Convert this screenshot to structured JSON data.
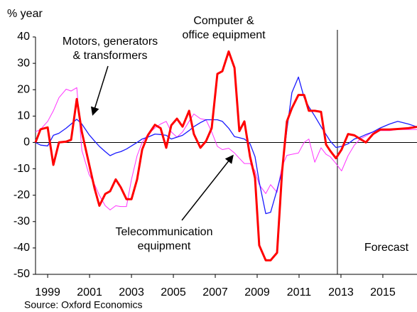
{
  "chart_data": {
    "type": "line",
    "y_axis_label": "% year",
    "source": "Source: Oxford Economics",
    "annotations": [
      {
        "lines": [
          "Computer &",
          "office equipment"
        ]
      },
      {
        "lines": [
          "Motors, generators",
          "& transformers"
        ]
      },
      {
        "lines": [
          "Telecommunication",
          "equipment"
        ]
      },
      {
        "lines": [
          "Forecast"
        ]
      }
    ],
    "forecast_x": 2012.83,
    "x": [
      1998.42,
      1998.66,
      1999,
      1999.27,
      1999.54,
      1999.88,
      2000.12,
      2000.39,
      2000.63,
      2000.97,
      2001.24,
      2001.47,
      2001.75,
      2001.98,
      2002.25,
      2002.49,
      2002.76,
      2003.0,
      2003.27,
      2003.51,
      2003.78,
      2004.12,
      2004.39,
      2004.66,
      2004.9,
      2005.17,
      2005.44,
      2005.75,
      2005.98,
      2006.29,
      2006.56,
      2006.83,
      2007.1,
      2007.34,
      2007.64,
      2007.92,
      2008.15,
      2008.39,
      2008.66,
      2008.9,
      2009.1,
      2009.41,
      2009.64,
      2009.95,
      2010.19,
      2010.42,
      2010.66,
      2010.97,
      2011.24,
      2011.47,
      2011.75,
      2012.05,
      2012.29,
      2012.49,
      2012.76,
      2013.03,
      2013.34,
      2013.64,
      2013.92,
      2014.19,
      2014.53,
      2014.88,
      2015.32,
      2015.71,
      2016.22,
      2016.63
    ],
    "series": [
      {
        "name": "Telecommunication equipment",
        "color": "#ff33ff",
        "width": 1,
        "values": [
          4,
          5,
          8,
          12,
          17,
          20.2,
          19.5,
          20.8,
          -3,
          -12,
          -16,
          -20,
          -24,
          -25.6,
          -24,
          -24.3,
          -24.3,
          -14,
          -5,
          0,
          3,
          5.5,
          7,
          8,
          4,
          2,
          4,
          8,
          10.8,
          9,
          8.6,
          4,
          -1.5,
          -2.7,
          -2.2,
          -4,
          -6,
          -8,
          -8,
          -10.8,
          -16,
          -19.4,
          -16,
          -18.9,
          -9,
          -4.9,
          -4.5,
          -4,
          0,
          1.3,
          -7.5,
          -2,
          -4.5,
          -5.4,
          -8,
          -10.8,
          -5,
          -1,
          1.3,
          2.5,
          4,
          4.5,
          4.5,
          4.9,
          4.9,
          4.9
        ]
      },
      {
        "name": "Motors, generators & transformers",
        "color": "#1a1aff",
        "width": 1.3,
        "values": [
          0,
          -1,
          -1.3,
          2.7,
          3.5,
          5.4,
          7,
          8.8,
          7,
          3,
          0.5,
          -1.5,
          -3.5,
          -5,
          -4,
          -3.5,
          -2.5,
          -1.3,
          0,
          1.3,
          2,
          3.2,
          3,
          2.7,
          1.3,
          2,
          2.7,
          4.5,
          6,
          7.5,
          8.6,
          8.6,
          8.6,
          8,
          5.4,
          2.2,
          1.8,
          1.3,
          -0.5,
          -5.4,
          -15,
          -27,
          -26.5,
          -18,
          -10.8,
          5,
          18.9,
          24.8,
          17,
          13.5,
          10,
          6,
          3,
          0.5,
          -1.9,
          -1.5,
          -0.5,
          1.3,
          2,
          3,
          4,
          5.5,
          7,
          8,
          7,
          5.9
        ]
      },
      {
        "name": "Computer & office equipment",
        "color": "#ff0000",
        "width": 3,
        "values": [
          0,
          5,
          5.7,
          -8.5,
          0,
          0.3,
          1,
          16.5,
          4,
          -8,
          -17.5,
          -24,
          -19.5,
          -18.5,
          -14,
          -17,
          -21.5,
          -21.5,
          -14,
          -2.7,
          2.7,
          6.7,
          5.4,
          -2,
          6.5,
          9,
          6,
          12,
          3.2,
          -2,
          0.5,
          5.4,
          26,
          27,
          34.5,
          28.3,
          4.3,
          8,
          -5.4,
          -13.5,
          -39,
          -44.7,
          -44.7,
          -41.8,
          -11,
          8,
          13,
          18,
          18,
          12,
          12,
          11.6,
          -0.8,
          -3.2,
          -6,
          -2.7,
          3.2,
          2.7,
          1.3,
          0,
          3.2,
          4.9,
          4.9,
          5.1,
          5.4,
          5.9
        ]
      }
    ],
    "xlim": [
      1998.42,
      2016.63
    ],
    "xticks": [
      1999,
      2001,
      2003,
      2005,
      2007,
      2009,
      2011,
      2013,
      2015
    ],
    "ylim": [
      -50,
      40
    ],
    "yticks": [
      -50,
      -40,
      -30,
      -20,
      -10,
      0,
      10,
      20,
      30,
      40
    ],
    "grid": false
  }
}
